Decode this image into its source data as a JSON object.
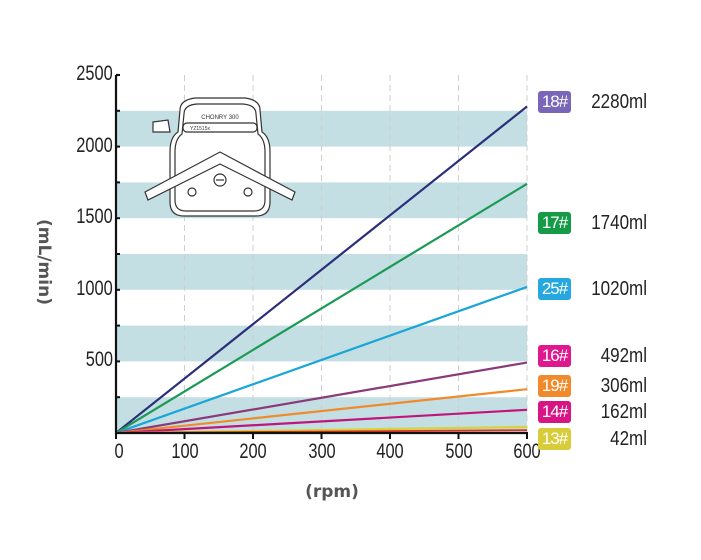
{
  "chart_data": {
    "type": "line",
    "title": "",
    "xlabel": "(rpm)",
    "ylabel": "(mL/min)",
    "xlim": [
      0,
      600
    ],
    "ylim": [
      0,
      2500
    ],
    "x_ticks": [
      "0",
      "100",
      "200",
      "300",
      "400",
      "500",
      "600"
    ],
    "y_ticks": [
      "500",
      "1000",
      "1500",
      "2000",
      "2500"
    ],
    "grid": "vertical dashed lines at each 100 rpm; alternating horizontal light-blue bands every 250 mL/min",
    "legend_position": "right",
    "x": [
      0,
      600
    ],
    "series": [
      {
        "name": "18#",
        "label": "2280ml",
        "color": "#2b2e7a",
        "badge_color": "#7a66b8",
        "values": [
          0,
          2280
        ]
      },
      {
        "name": "17#",
        "label": "1740ml",
        "color": "#1a9a55",
        "badge_color": "#159a48",
        "values": [
          0,
          1740
        ]
      },
      {
        "name": "25#",
        "label": "1020ml",
        "color": "#1aa6d6",
        "badge_color": "#25a8df",
        "values": [
          0,
          1020
        ]
      },
      {
        "name": "16#",
        "label": "492ml",
        "color": "#8a3a7a",
        "badge_color": "#e0188f",
        "values": [
          0,
          492
        ]
      },
      {
        "name": "19#",
        "label": "306ml",
        "color": "#f08a2a",
        "badge_color": "#f08a2a",
        "values": [
          0,
          306
        ]
      },
      {
        "name": "14#",
        "label": "162ml",
        "color": "#c0157a",
        "badge_color": "#d81584",
        "values": [
          0,
          162
        ]
      },
      {
        "name": "13#",
        "label": "42ml",
        "color": "#d8d23a",
        "badge_color": "#d9cc3a",
        "values": [
          0,
          42
        ]
      }
    ],
    "inset_image": {
      "description": "peristaltic pump head illustration",
      "text": [
        "CHONRY",
        "YZ1515x"
      ]
    }
  }
}
